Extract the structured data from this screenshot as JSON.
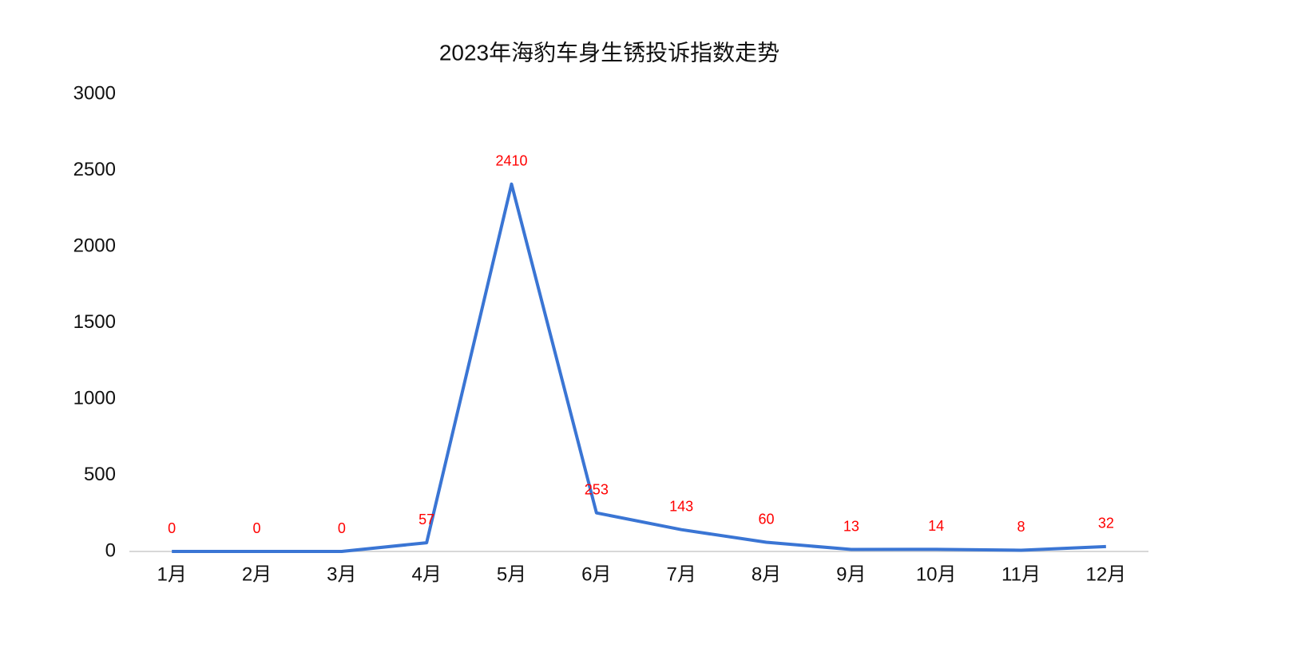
{
  "chart_data": {
    "type": "line",
    "title": "2023年海豹车身生锈投诉指数走势",
    "categories": [
      "1月",
      "2月",
      "3月",
      "4月",
      "5月",
      "6月",
      "7月",
      "8月",
      "9月",
      "10月",
      "11月",
      "12月"
    ],
    "values": [
      0,
      0,
      0,
      57,
      2410,
      253,
      143,
      60,
      13,
      14,
      8,
      32
    ],
    "color": "#3a75d4",
    "label_color": "#ff0000",
    "ylim": [
      0,
      3000
    ],
    "yticks": [
      0,
      500,
      1000,
      1500,
      2000,
      2500,
      3000
    ],
    "grid": false
  }
}
